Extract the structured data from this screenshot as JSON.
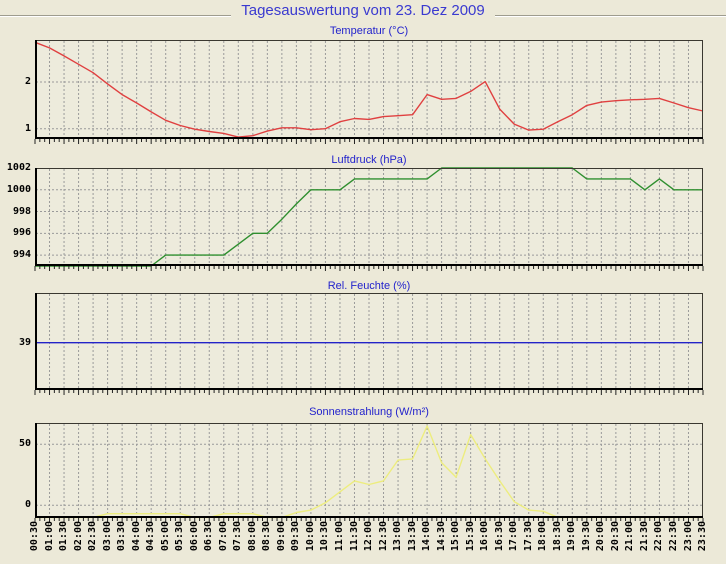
{
  "page": {
    "title": "Tagesauswertung vom 23. Dez 2009"
  },
  "colors": {
    "page_bg": "#ECE9D8",
    "plot_bg": "#EDEBDC",
    "grid": "#9A9A9A",
    "frame_dark": "#000000",
    "frame_light": "#3A3830",
    "tick": "#222222",
    "main_title": "#3A3AD0",
    "chart_title": "#2323CC",
    "axis_label": "#000000",
    "temperature_line": "#E04040",
    "pressure_line": "#2F8F2F",
    "humidity_line": "#2323C8",
    "radiation_line": "#EDED7E"
  },
  "x_categories": [
    "00:30",
    "01:00",
    "01:30",
    "02:00",
    "02:30",
    "03:00",
    "03:30",
    "04:00",
    "04:30",
    "05:00",
    "05:30",
    "06:00",
    "06:30",
    "07:00",
    "07:30",
    "08:00",
    "08:30",
    "09:00",
    "09:30",
    "10:00",
    "10:30",
    "11:00",
    "11:30",
    "12:00",
    "12:30",
    "13:00",
    "13:30",
    "14:00",
    "14:30",
    "15:00",
    "15:30",
    "16:00",
    "16:30",
    "17:00",
    "17:30",
    "18:00",
    "18:30",
    "19:00",
    "19:30",
    "20:00",
    "20:30",
    "21:00",
    "21:30",
    "22:00",
    "22:30",
    "23:00",
    "23:30"
  ],
  "chart_data": [
    {
      "id": "temperatur",
      "type": "line",
      "title": "Temperatur (°C)",
      "color": "#E04040",
      "ylim": [
        0.78,
        2.9
      ],
      "grid_values": [
        2,
        1
      ],
      "y_ticks": [
        {
          "label": "2",
          "value": 2
        },
        {
          "label": "1",
          "value": 1
        }
      ],
      "values": [
        2.85,
        2.73,
        2.56,
        2.38,
        2.2,
        1.96,
        1.73,
        1.55,
        1.36,
        1.18,
        1.07,
        0.99,
        0.94,
        0.9,
        0.82,
        0.85,
        0.95,
        1.02,
        1.02,
        0.98,
        1.0,
        1.15,
        1.22,
        1.2,
        1.26,
        1.28,
        1.3,
        1.73,
        1.63,
        1.65,
        1.8,
        2.01,
        1.42,
        1.1,
        0.97,
        0.99,
        1.15,
        1.3,
        1.5,
        1.57,
        1.6,
        1.62,
        1.63,
        1.65,
        1.55,
        1.45,
        1.38
      ]
    },
    {
      "id": "luftdruck",
      "type": "line",
      "title": "Luftdruck (hPa)",
      "color": "#2F8F2F",
      "ylim": [
        993,
        1002
      ],
      "grid_values": [
        1000,
        998,
        996,
        994
      ],
      "y_ticks": [
        {
          "label": "1002",
          "value": 1002
        },
        {
          "label": "1000",
          "value": 1000
        },
        {
          "label": "998",
          "value": 998
        },
        {
          "label": "996",
          "value": 996
        },
        {
          "label": "994",
          "value": 994
        }
      ],
      "values": [
        993,
        993,
        993,
        993,
        993,
        993,
        993,
        993,
        993,
        994,
        994,
        994,
        994,
        994,
        995,
        996,
        996,
        997.3,
        998.7,
        1000,
        1000,
        1000,
        1001,
        1001,
        1001,
        1001,
        1001,
        1001,
        1002,
        1002,
        1002,
        1002,
        1002,
        1002,
        1002,
        1002,
        1002,
        1002,
        1001,
        1001,
        1001,
        1001,
        1000,
        1001,
        1000,
        1000,
        1000
      ]
    },
    {
      "id": "feuchte",
      "type": "line",
      "title": "Rel. Feuchte (%)",
      "color": "#2323C8",
      "ylim": [
        38,
        40.05
      ],
      "grid_values": [],
      "y_ticks": [
        {
          "label": "39",
          "value": 39
        }
      ],
      "values": [
        39,
        39,
        39,
        39,
        39,
        39,
        39,
        39,
        39,
        39,
        39,
        39,
        39,
        39,
        39,
        39,
        39,
        39,
        39,
        39,
        39,
        39,
        39,
        39,
        39,
        39,
        39,
        39,
        39,
        39,
        39,
        39,
        39,
        39,
        39,
        39,
        39,
        39,
        39,
        39,
        39,
        39,
        39,
        39,
        39,
        39,
        39
      ]
    },
    {
      "id": "sonnenstrahlung",
      "type": "line",
      "title": "Sonnenstrahlung (W/m²)",
      "color": "#EDED7E",
      "ylim": [
        -10.5,
        67.5
      ],
      "grid_values": [
        50,
        0
      ],
      "y_ticks": [
        {
          "label": "50",
          "value": 50
        },
        {
          "label": "0",
          "value": 0
        }
      ],
      "values": [
        -10,
        -10,
        -10,
        -10,
        -10,
        -7,
        -7,
        -7,
        -7,
        -7,
        -7,
        -10,
        -10,
        -7,
        -7,
        -7,
        -10,
        -10,
        -6,
        -4,
        2,
        11,
        20,
        17,
        20,
        37,
        38,
        65,
        35,
        23,
        58,
        38,
        20,
        3,
        -4,
        -5,
        -10,
        -10,
        -10,
        -10,
        -10,
        -10,
        -10,
        -10,
        -10,
        -10,
        -10
      ]
    }
  ]
}
